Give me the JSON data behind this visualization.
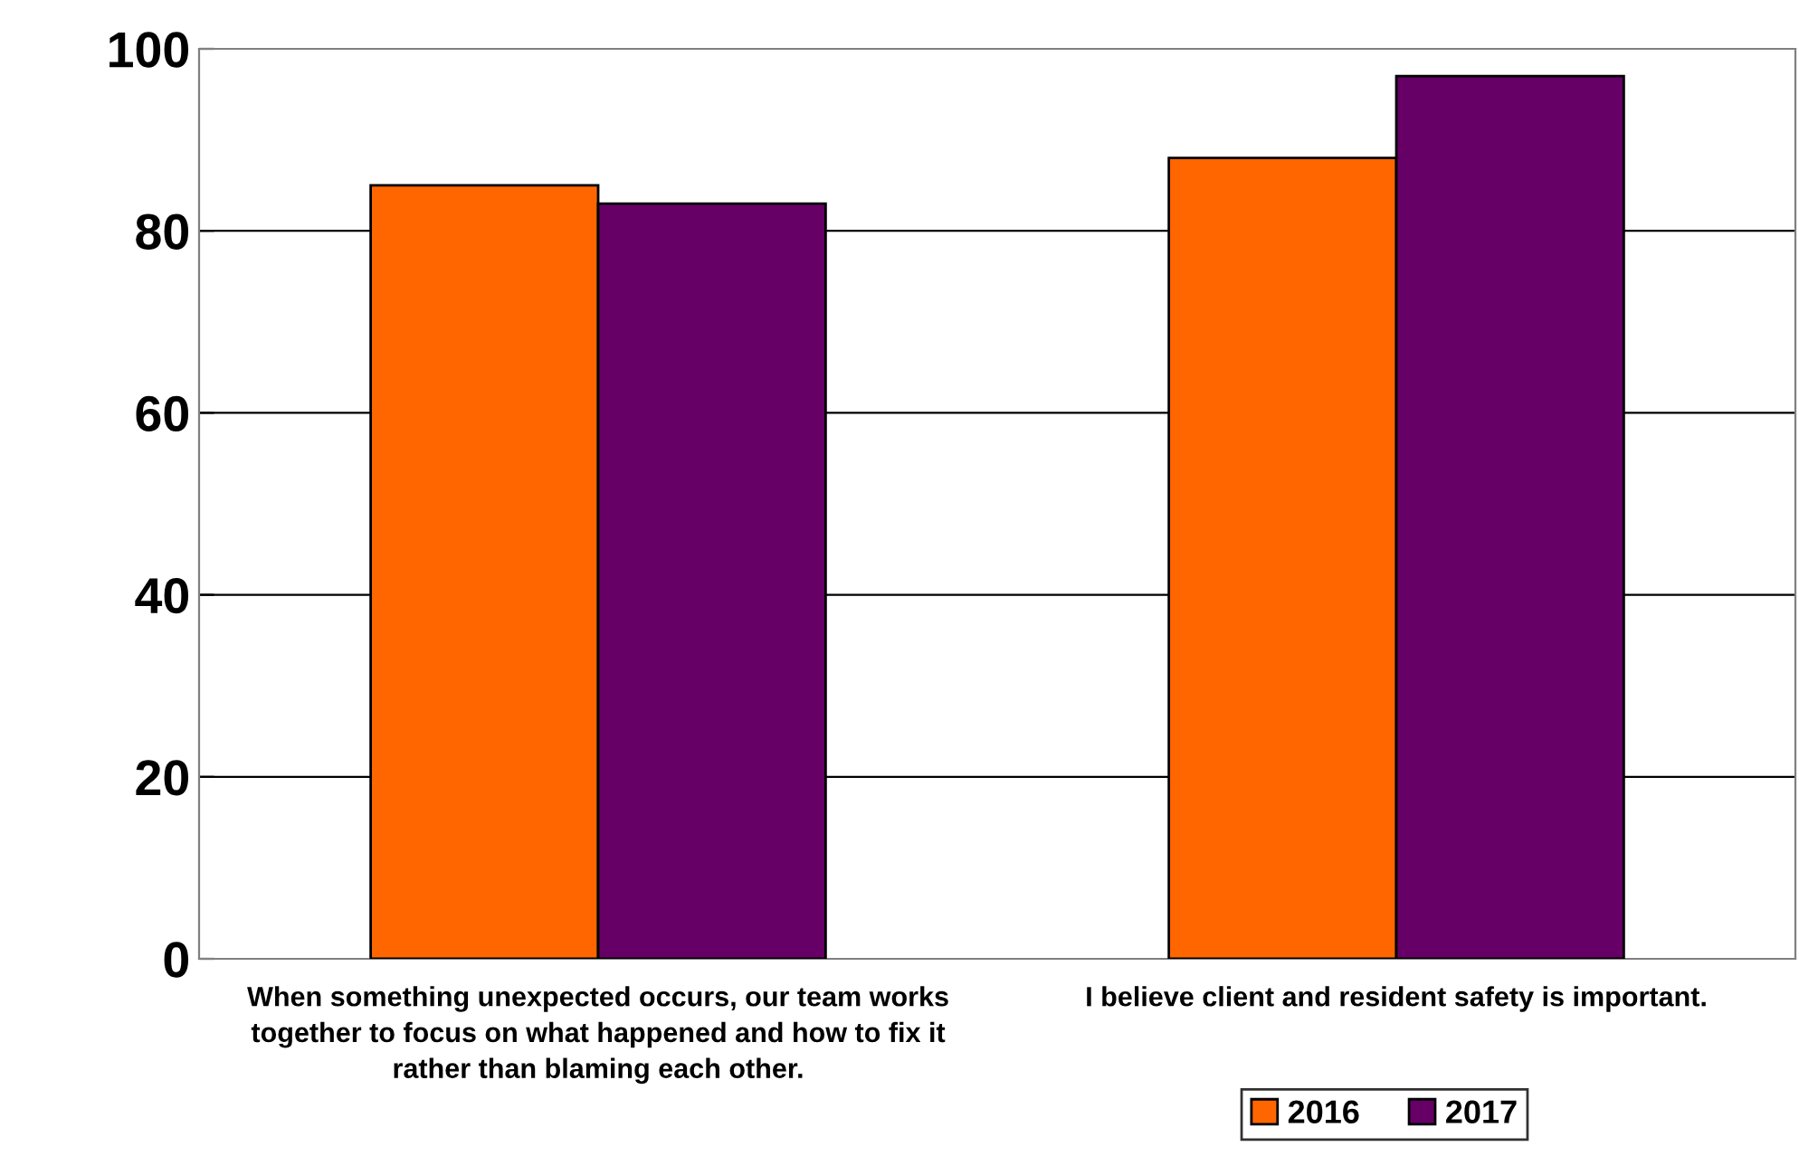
{
  "chart_data": {
    "type": "bar",
    "categories": [
      "When something unexpected occurs, our team works together to focus on what happened and how to fix it rather than blaming each other.",
      "I believe client and resident safety is important."
    ],
    "series": [
      {
        "name": "2016",
        "color": "#ff6600",
        "values": [
          85,
          88
        ]
      },
      {
        "name": "2017",
        "color": "#660066",
        "values": [
          83,
          97
        ]
      }
    ],
    "ylim": [
      0,
      100
    ],
    "yticks": [
      0,
      20,
      40,
      60,
      80,
      100
    ],
    "grid": "y",
    "legend": "bottom"
  }
}
